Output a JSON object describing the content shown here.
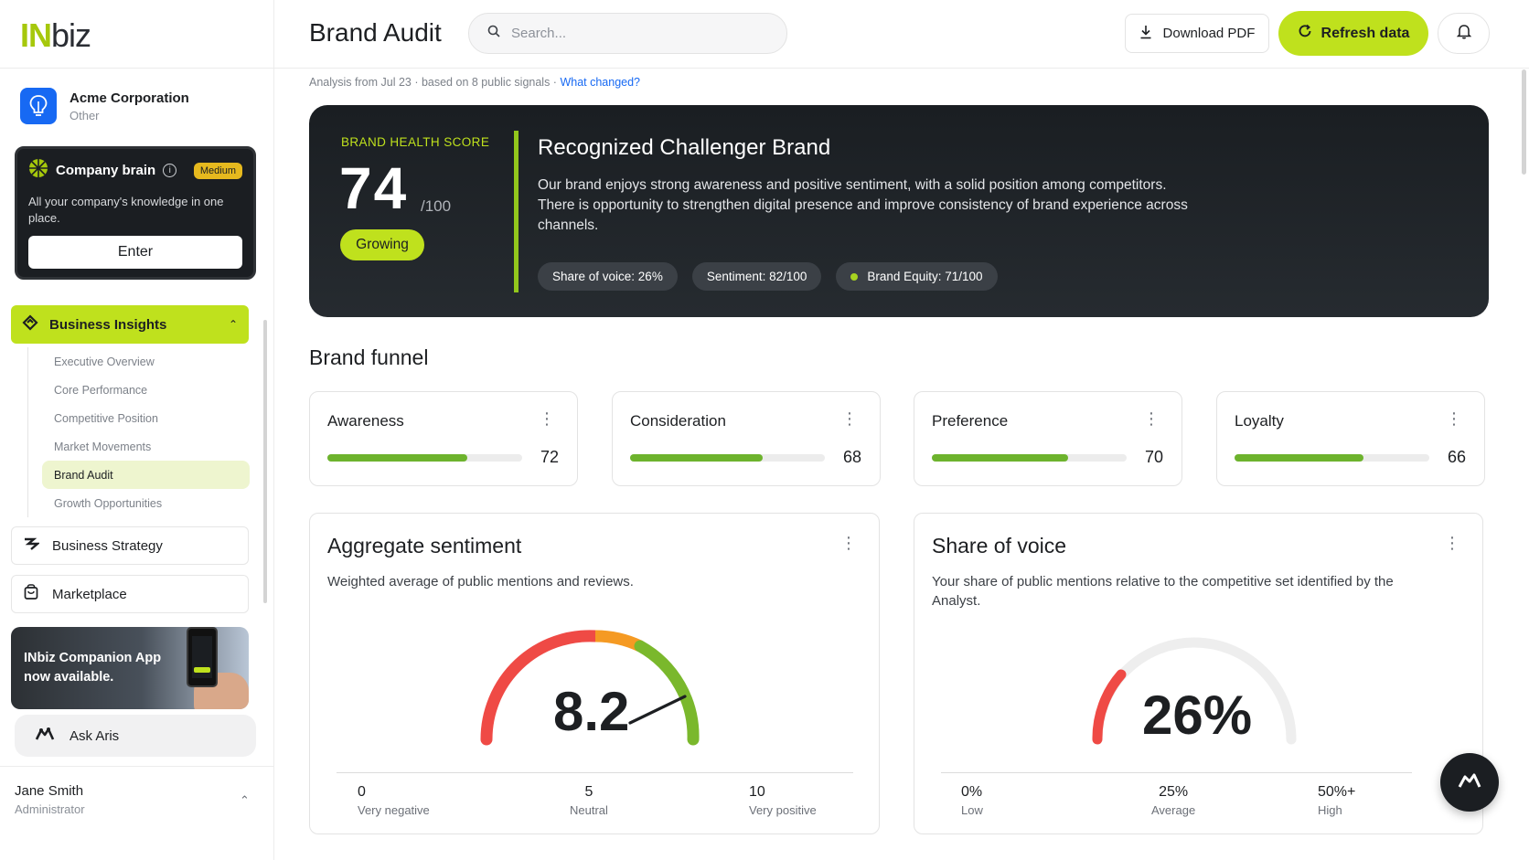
{
  "brand": {
    "logo_in": "IN",
    "logo_biz": "biz"
  },
  "org": {
    "name": "Acme Corporation",
    "type": "Other"
  },
  "brain": {
    "title": "Company brain",
    "badge": "Medium",
    "desc": "All your company's knowledge in one place.",
    "enter": "Enter"
  },
  "nav": {
    "active": "Business Insights",
    "sub": [
      "Executive Overview",
      "Core Performance",
      "Competitive Position",
      "Market Movements",
      "Brand Audit",
      "Growth Opportunities"
    ],
    "strategy": "Business Strategy",
    "marketplace": "Marketplace"
  },
  "promo": {
    "line1": "INbiz Companion App",
    "line2": "now available."
  },
  "ask": "Ask Aris",
  "user": {
    "name": "Jane Smith",
    "role": "Administrator"
  },
  "header": {
    "title": "Brand Audit",
    "search_placeholder": "Search...",
    "download": "Download PDF",
    "refresh": "Refresh data"
  },
  "subline": {
    "text": "Analysis from Jul 23 · based on 8 public signals · ",
    "link": "What changed?"
  },
  "hero": {
    "label": "BRAND HEALTH SCORE",
    "score": "74",
    "outof": "/100",
    "status": "Growing",
    "title": "Recognized Challenger Brand",
    "desc": "Our brand enjoys strong awareness and positive sentiment, with a solid position among competitors. There is opportunity to strengthen digital presence and improve consistency of brand experience across channels.",
    "chips": [
      "Share of voice: 26%",
      "Sentiment: 82/100",
      "Brand Equity: 71/100"
    ]
  },
  "funnel": {
    "title": "Brand funnel",
    "items": [
      {
        "label": "Awareness",
        "value": 72
      },
      {
        "label": "Consideration",
        "value": 68
      },
      {
        "label": "Preference",
        "value": 70
      },
      {
        "label": "Loyalty",
        "value": 66
      }
    ]
  },
  "sentiment": {
    "title": "Aggregate sentiment",
    "desc": "Weighted average of public mentions and reviews.",
    "value": "8.2",
    "scale": [
      {
        "v": "0",
        "l": "Very negative"
      },
      {
        "v": "5",
        "l": "Neutral"
      },
      {
        "v": "10",
        "l": "Very positive"
      }
    ]
  },
  "voice": {
    "title": "Share of voice",
    "desc": "Your share of public mentions relative to the competitive set identified by the Analyst.",
    "value": "26%",
    "scale": [
      {
        "v": "0%",
        "l": "Low"
      },
      {
        "v": "25%",
        "l": "Average"
      },
      {
        "v": "50%+",
        "l": "High"
      }
    ]
  },
  "colors": {
    "accent": "#bfe11d",
    "dark": "#1b1e22",
    "bar": "#6db32d",
    "link": "#1769f3",
    "badge": "#e6b91e"
  },
  "icons": [
    "search-icon",
    "download-icon",
    "refresh-icon",
    "bell-icon",
    "info-icon",
    "chevron-up-icon",
    "lightbulb-icon",
    "brain-icon",
    "insights-icon",
    "strategy-icon",
    "marketplace-icon",
    "aris-icon",
    "kebab-menu-icon"
  ]
}
